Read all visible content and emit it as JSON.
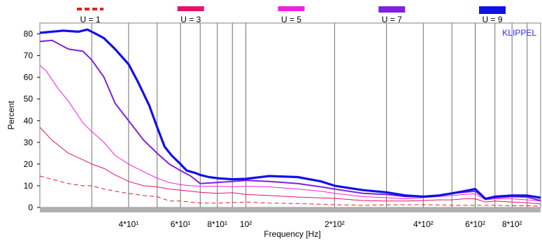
{
  "chart_data": {
    "type": "line",
    "title": "",
    "xlabel": "Frequency  [Hz]",
    "ylabel": "Percent",
    "x_scale": "log",
    "xlim": [
      20,
      1000
    ],
    "ylim": [
      0,
      85
    ],
    "grid": "vertical",
    "legend_position": "top",
    "watermark": "KLIPPEL",
    "y_ticks": [
      {
        "value": 0,
        "label": "0"
      },
      {
        "value": 10,
        "label": "10"
      },
      {
        "value": 20,
        "label": "20"
      },
      {
        "value": 30,
        "label": "30"
      },
      {
        "value": 40,
        "label": "40"
      },
      {
        "value": 50,
        "label": "50"
      },
      {
        "value": 60,
        "label": "60"
      },
      {
        "value": 70,
        "label": "70"
      },
      {
        "value": 80,
        "label": "80"
      }
    ],
    "x_tick_labels": [
      {
        "value": 40,
        "label": "4*10¹"
      },
      {
        "value": 60,
        "label": "6*10¹"
      },
      {
        "value": 80,
        "label": "8*10¹"
      },
      {
        "value": 100,
        "label": "10²"
      },
      {
        "value": 200,
        "label": "2*10²"
      },
      {
        "value": 400,
        "label": "4*10²"
      },
      {
        "value": 600,
        "label": "6*10²"
      },
      {
        "value": 800,
        "label": "8*10²"
      }
    ],
    "x_gridlines": [
      30,
      40,
      50,
      60,
      70,
      80,
      90,
      100,
      200,
      300,
      400,
      500,
      600,
      700,
      800,
      900
    ],
    "series": [
      {
        "name": "U = 1",
        "color": "#e0201c",
        "dash": "6,4",
        "width": 1,
        "points": [
          [
            20,
            14.5
          ],
          [
            22,
            13
          ],
          [
            25,
            11
          ],
          [
            28,
            10
          ],
          [
            30,
            10
          ],
          [
            33,
            8.5
          ],
          [
            36,
            7.5
          ],
          [
            40,
            6.5
          ],
          [
            45,
            5.5
          ],
          [
            50,
            5
          ],
          [
            55,
            3
          ],
          [
            60,
            3
          ],
          [
            70,
            2
          ],
          [
            80,
            2
          ],
          [
            100,
            2.5
          ],
          [
            120,
            2
          ],
          [
            150,
            1.8
          ],
          [
            200,
            1.3
          ],
          [
            250,
            1
          ],
          [
            300,
            1.2
          ],
          [
            400,
            1.3
          ],
          [
            500,
            1
          ],
          [
            600,
            1
          ],
          [
            700,
            1
          ],
          [
            800,
            0.8
          ],
          [
            900,
            0.8
          ],
          [
            1000,
            0.6
          ]
        ]
      },
      {
        "name": "U = 3",
        "color": "#e8106a",
        "width": 1,
        "points": [
          [
            20,
            37
          ],
          [
            22,
            31
          ],
          [
            25,
            25
          ],
          [
            28,
            22
          ],
          [
            30,
            20
          ],
          [
            33,
            18
          ],
          [
            36,
            15
          ],
          [
            40,
            12
          ],
          [
            45,
            10
          ],
          [
            50,
            9.5
          ],
          [
            55,
            8.5
          ],
          [
            60,
            8
          ],
          [
            65,
            7.5
          ],
          [
            70,
            7
          ],
          [
            80,
            6.5
          ],
          [
            90,
            6.8
          ],
          [
            100,
            6
          ],
          [
            120,
            5.5
          ],
          [
            150,
            4.8
          ],
          [
            200,
            4.2
          ],
          [
            250,
            3.2
          ],
          [
            300,
            3
          ],
          [
            350,
            3
          ],
          [
            400,
            3.2
          ],
          [
            450,
            3.5
          ],
          [
            500,
            3.5
          ],
          [
            550,
            4
          ],
          [
            600,
            4
          ],
          [
            650,
            2.5
          ],
          [
            700,
            3
          ],
          [
            800,
            2.5
          ],
          [
            900,
            2.2
          ],
          [
            1000,
            1.6
          ]
        ]
      },
      {
        "name": "U = 5",
        "color": "#f020e0",
        "width": 1,
        "points": [
          [
            20,
            65.5
          ],
          [
            21,
            63
          ],
          [
            23,
            55
          ],
          [
            25,
            49
          ],
          [
            28,
            39
          ],
          [
            30,
            35
          ],
          [
            33,
            30
          ],
          [
            36,
            24
          ],
          [
            40,
            20
          ],
          [
            45,
            16.5
          ],
          [
            50,
            13.5
          ],
          [
            55,
            11.5
          ],
          [
            60,
            10.5
          ],
          [
            65,
            10
          ],
          [
            70,
            9.8
          ],
          [
            80,
            9.8
          ],
          [
            90,
            9.5
          ],
          [
            100,
            9.8
          ],
          [
            120,
            9.5
          ],
          [
            150,
            8.5
          ],
          [
            180,
            7.5
          ],
          [
            200,
            6.5
          ],
          [
            250,
            5
          ],
          [
            300,
            4.5
          ],
          [
            350,
            4
          ],
          [
            400,
            4.5
          ],
          [
            450,
            5
          ],
          [
            500,
            5.5
          ],
          [
            550,
            6
          ],
          [
            600,
            6.3
          ],
          [
            650,
            3.5
          ],
          [
            700,
            4
          ],
          [
            800,
            4
          ],
          [
            900,
            3.5
          ],
          [
            1000,
            3
          ]
        ]
      },
      {
        "name": "U = 7",
        "color": "#8020e0",
        "width": 2,
        "points": [
          [
            20,
            76.5
          ],
          [
            22,
            77
          ],
          [
            25,
            73
          ],
          [
            28,
            72
          ],
          [
            30,
            68
          ],
          [
            33,
            60
          ],
          [
            36,
            48
          ],
          [
            40,
            40
          ],
          [
            45,
            31
          ],
          [
            50,
            25
          ],
          [
            55,
            20
          ],
          [
            60,
            17
          ],
          [
            65,
            14.5
          ],
          [
            70,
            11
          ],
          [
            80,
            11.5
          ],
          [
            90,
            12
          ],
          [
            100,
            12.5
          ],
          [
            120,
            12
          ],
          [
            150,
            11
          ],
          [
            180,
            9.5
          ],
          [
            200,
            8.5
          ],
          [
            250,
            6.5
          ],
          [
            300,
            6
          ],
          [
            350,
            5
          ],
          [
            400,
            5
          ],
          [
            450,
            5.5
          ],
          [
            500,
            6.5
          ],
          [
            550,
            7
          ],
          [
            600,
            7.5
          ],
          [
            650,
            4
          ],
          [
            700,
            4.5
          ],
          [
            800,
            5
          ],
          [
            900,
            4.8
          ],
          [
            1000,
            3.2
          ]
        ]
      },
      {
        "name": "U = 9",
        "color": "#1010e8",
        "width": 3.2,
        "points": [
          [
            20,
            80.5
          ],
          [
            22,
            81
          ],
          [
            24,
            81.5
          ],
          [
            27,
            81
          ],
          [
            29,
            82
          ],
          [
            31,
            80
          ],
          [
            33,
            78
          ],
          [
            36,
            73
          ],
          [
            40,
            66
          ],
          [
            43,
            58
          ],
          [
            47,
            47
          ],
          [
            50,
            37
          ],
          [
            53,
            28
          ],
          [
            56,
            24
          ],
          [
            60,
            20
          ],
          [
            63,
            17
          ],
          [
            67,
            16
          ],
          [
            70,
            15
          ],
          [
            75,
            14
          ],
          [
            80,
            13.5
          ],
          [
            90,
            13
          ],
          [
            100,
            13.2
          ],
          [
            120,
            14.5
          ],
          [
            150,
            14
          ],
          [
            180,
            12
          ],
          [
            200,
            10
          ],
          [
            250,
            8
          ],
          [
            300,
            7
          ],
          [
            350,
            5.5
          ],
          [
            400,
            5
          ],
          [
            450,
            5.5
          ],
          [
            500,
            6.5
          ],
          [
            550,
            7.5
          ],
          [
            600,
            8.5
          ],
          [
            650,
            4
          ],
          [
            700,
            5
          ],
          [
            800,
            5.5
          ],
          [
            900,
            5.5
          ],
          [
            1000,
            4.5
          ]
        ]
      }
    ]
  }
}
